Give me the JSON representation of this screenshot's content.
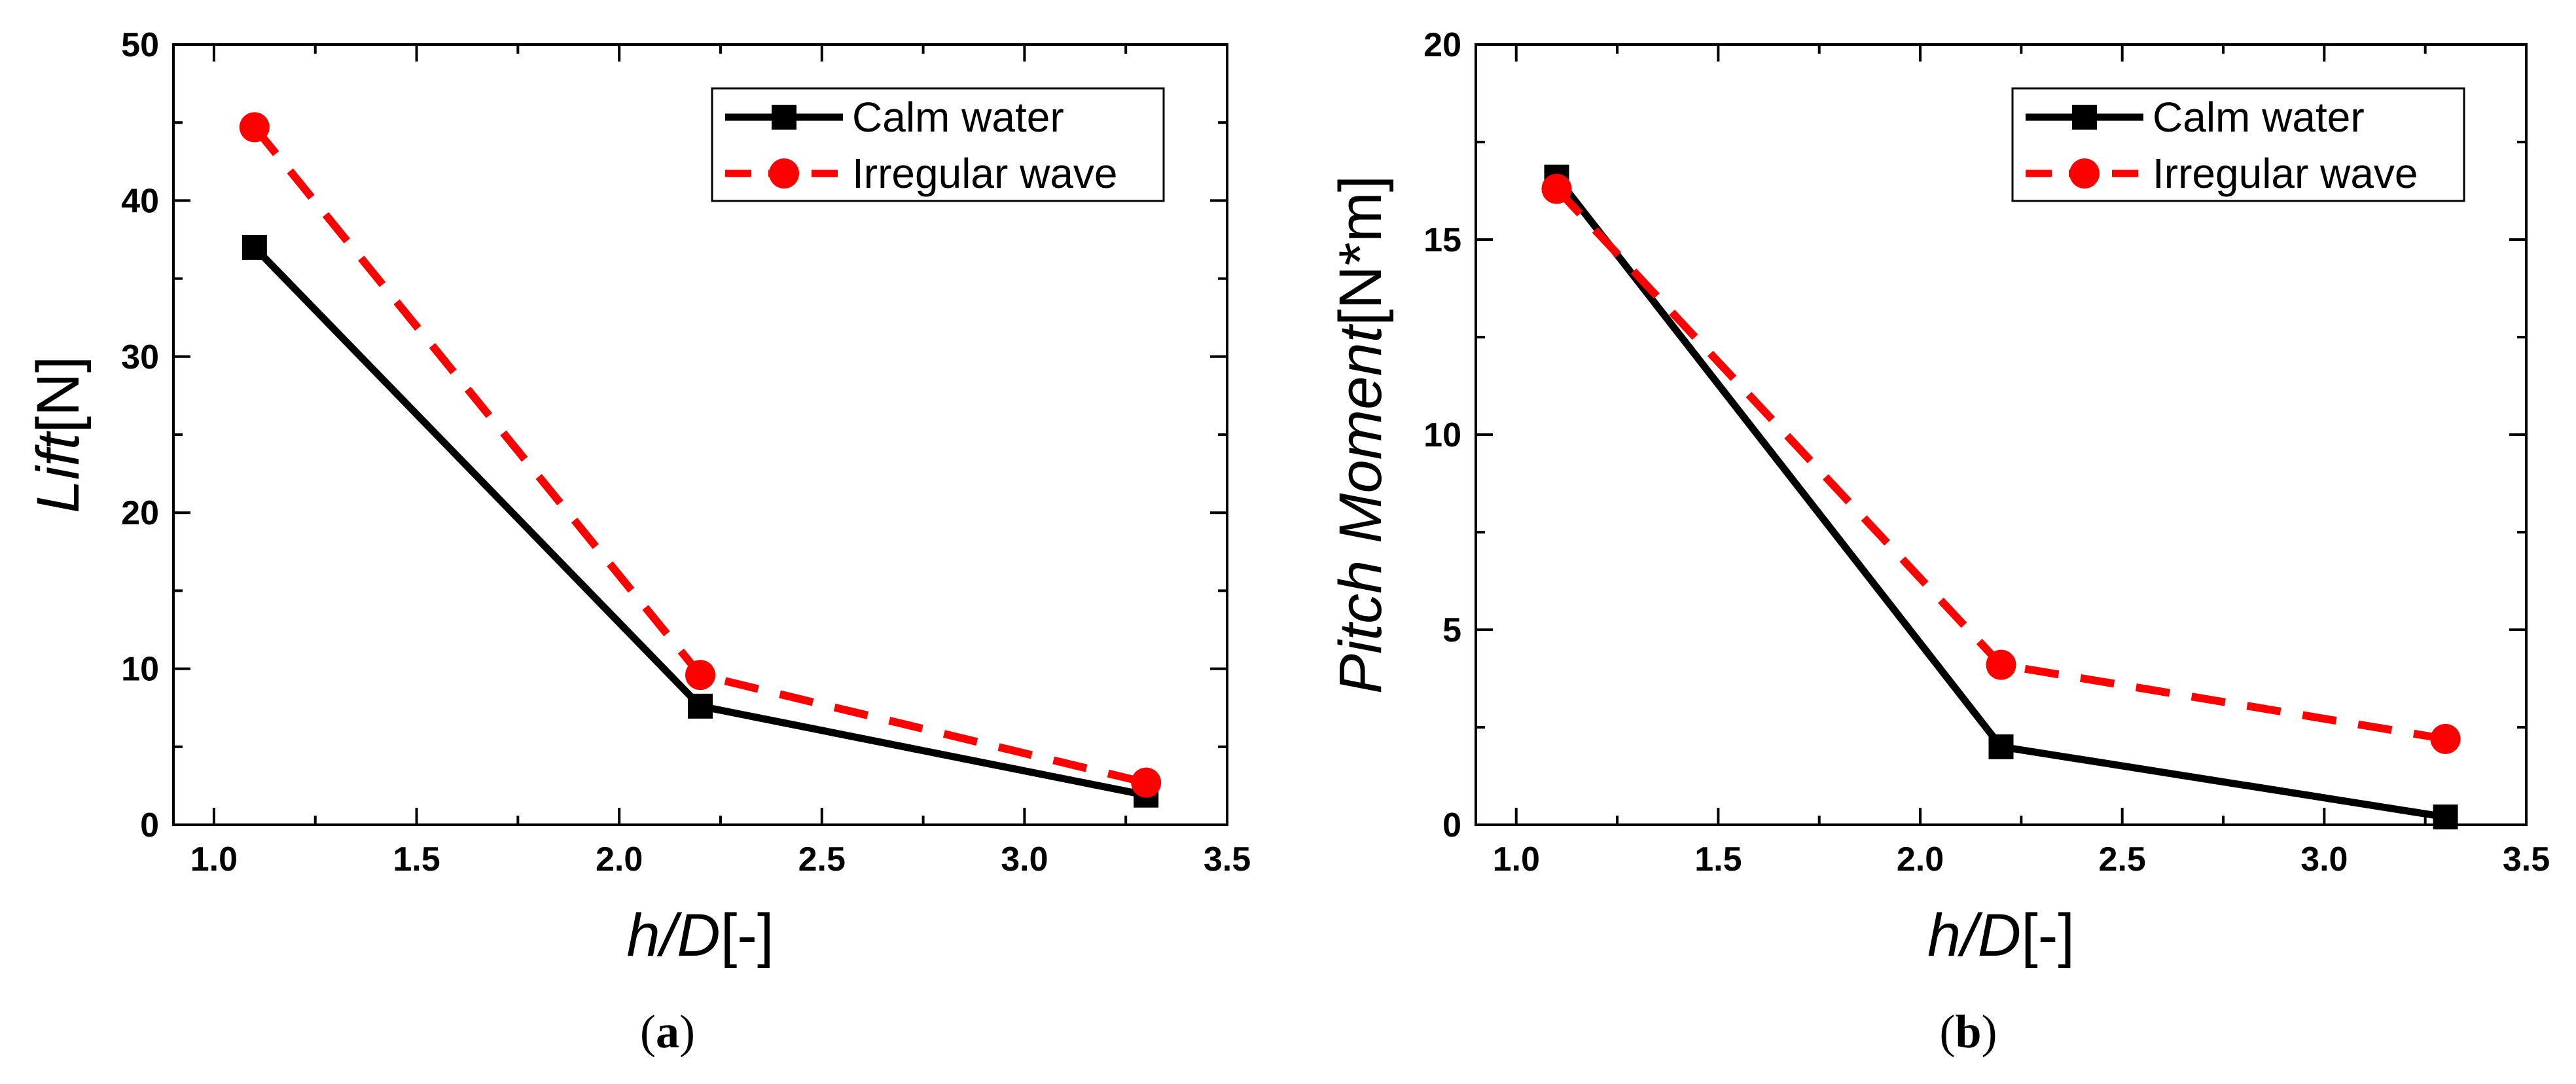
{
  "chart_data": [
    {
      "type": "line",
      "panel_label_open": "(",
      "panel_label_letter": "a",
      "panel_label_close": ")",
      "xlabel_italic": "h/D",
      "xlabel_rest": "[-]",
      "ylabel_italic": "Lift",
      "ylabel_rest": "[N]",
      "xlim": [
        0.9,
        3.5
      ],
      "ylim": [
        0,
        50
      ],
      "xticks": [
        1.0,
        1.5,
        2.0,
        2.5,
        3.0,
        3.5
      ],
      "xtick_labels": [
        "1.0",
        "1.5",
        "2.0",
        "2.5",
        "3.0",
        "3.5"
      ],
      "yticks": [
        0,
        10,
        20,
        30,
        40,
        50
      ],
      "ytick_labels": [
        "0",
        "10",
        "20",
        "30",
        "40",
        "50"
      ],
      "legend_position": "top-right",
      "x": [
        1.1,
        2.2,
        3.3
      ],
      "series": [
        {
          "name": "Calm water",
          "values": [
            37.0,
            7.6,
            1.9
          ],
          "color": "#000000",
          "marker": "square",
          "dash": "solid"
        },
        {
          "name": "Irregular wave",
          "values": [
            44.7,
            9.6,
            2.7
          ],
          "color": "#ff0000",
          "marker": "circle",
          "dash": "dashed"
        }
      ]
    },
    {
      "type": "line",
      "panel_label_open": "(",
      "panel_label_letter": "b",
      "panel_label_close": ")",
      "xlabel_italic": "h/D",
      "xlabel_rest": "[-]",
      "ylabel_italic": "Pitch Moment",
      "ylabel_rest": "[N*m]",
      "xlim": [
        0.9,
        3.5
      ],
      "ylim": [
        0,
        20
      ],
      "xticks": [
        1.0,
        1.5,
        2.0,
        2.5,
        3.0,
        3.5
      ],
      "xtick_labels": [
        "1.0",
        "1.5",
        "2.0",
        "2.5",
        "3.0",
        "3.5"
      ],
      "yticks": [
        0,
        5,
        10,
        15,
        20
      ],
      "ytick_labels": [
        "0",
        "5",
        "10",
        "15",
        "20"
      ],
      "legend_position": "top-right",
      "x": [
        1.1,
        2.2,
        3.3
      ],
      "series": [
        {
          "name": "Calm water",
          "values": [
            16.6,
            2.0,
            0.2
          ],
          "color": "#000000",
          "marker": "square",
          "dash": "solid"
        },
        {
          "name": "Irregular wave",
          "values": [
            16.3,
            4.1,
            2.2
          ],
          "color": "#ff0000",
          "marker": "circle",
          "dash": "dashed"
        }
      ]
    }
  ]
}
